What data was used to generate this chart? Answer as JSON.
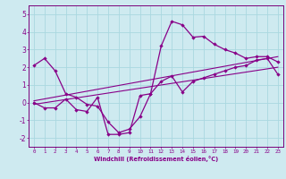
{
  "xlabel": "Windchill (Refroidissement éolien,°C)",
  "background_color": "#ceeaf0",
  "grid_color": "#aad8e0",
  "line_color": "#880088",
  "spine_color": "#7a007a",
  "xlim": [
    -0.5,
    23.5
  ],
  "ylim": [
    -2.5,
    5.5
  ],
  "yticks": [
    -2,
    -1,
    0,
    1,
    2,
    3,
    4,
    5
  ],
  "xtick_labels": [
    "0",
    "1",
    "2",
    "3",
    "4",
    "5",
    "6",
    "7",
    "8",
    "9",
    "10",
    "11",
    "12",
    "13",
    "14",
    "15",
    "16",
    "17",
    "18",
    "19",
    "20",
    "21",
    "22",
    "23"
  ],
  "xtick_positions": [
    0,
    1,
    2,
    3,
    4,
    5,
    6,
    7,
    8,
    9,
    10,
    11,
    12,
    13,
    14,
    15,
    16,
    17,
    18,
    19,
    20,
    21,
    22,
    23
  ],
  "line1_x": [
    0,
    1,
    2,
    3,
    4,
    5,
    6,
    7,
    8,
    9,
    10,
    11,
    12,
    13,
    14,
    15,
    16,
    17,
    18,
    19,
    20,
    21,
    22,
    23
  ],
  "line1_y": [
    2.1,
    2.5,
    1.8,
    0.5,
    0.3,
    -0.1,
    -0.2,
    -1.1,
    -1.7,
    -1.5,
    -0.8,
    0.5,
    3.2,
    4.6,
    4.4,
    3.7,
    3.75,
    3.3,
    3.0,
    2.8,
    2.5,
    2.6,
    2.6,
    2.3
  ],
  "line2_x": [
    0,
    1,
    2,
    3,
    4,
    5,
    6,
    7,
    8,
    9,
    10,
    11,
    12,
    13,
    14,
    15,
    16,
    17,
    18,
    19,
    20,
    21,
    22,
    23
  ],
  "line2_y": [
    0.0,
    -0.3,
    -0.3,
    0.2,
    -0.4,
    -0.5,
    0.3,
    -1.8,
    -1.8,
    -1.7,
    0.4,
    0.5,
    1.2,
    1.5,
    0.6,
    1.2,
    1.4,
    1.6,
    1.8,
    2.0,
    2.1,
    2.4,
    2.5,
    1.6
  ],
  "line3_x": [
    0,
    23
  ],
  "line3_y": [
    -0.1,
    2.0
  ],
  "line4_x": [
    0,
    23
  ],
  "line4_y": [
    0.1,
    2.6
  ]
}
